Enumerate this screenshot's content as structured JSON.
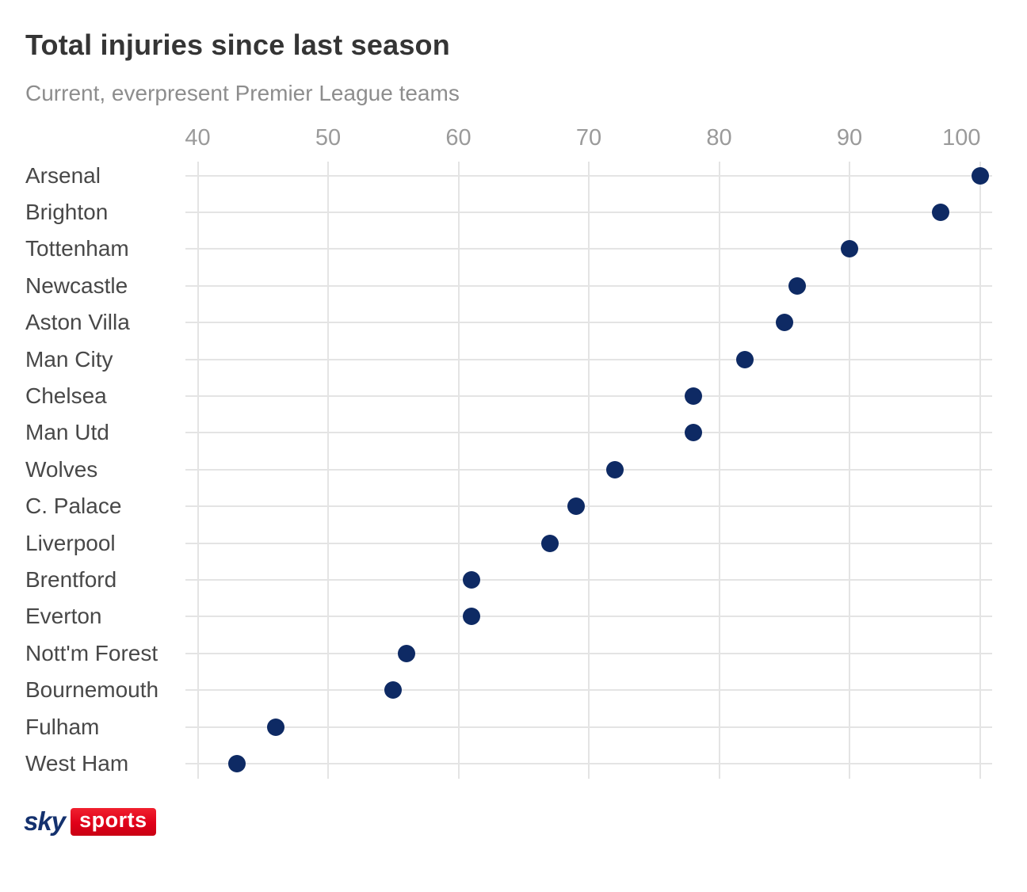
{
  "header": {
    "title": "Total injuries since last season",
    "subtitle": "Current, everpresent Premier League teams"
  },
  "logo": {
    "sky_text": "sky",
    "sports_text": "sports"
  },
  "colors": {
    "dot": "#0e2a64",
    "grid": "#e4e4e4",
    "title_text": "#353535",
    "subtitle_text": "#8d8d8d",
    "tick_text": "#9a9a9a",
    "team_text": "#484848",
    "logo_navy": "#14316e",
    "logo_red": "#e00019"
  },
  "chart_data": {
    "type": "scatter",
    "variant": "horizontal-dot-plot",
    "title": "Total injuries since last season",
    "subtitle": "Current, everpresent Premier League teams",
    "categories": [
      "Arsenal",
      "Brighton",
      "Tottenham",
      "Newcastle",
      "Aston Villa",
      "Man City",
      "Chelsea",
      "Man Utd",
      "Wolves",
      "C. Palace",
      "Liverpool",
      "Brentford",
      "Everton",
      "Nott'm Forest",
      "Bournemouth",
      "Fulham",
      "West Ham"
    ],
    "values": [
      100,
      97,
      90,
      86,
      85,
      82,
      78,
      78,
      72,
      69,
      67,
      61,
      61,
      56,
      55,
      46,
      43
    ],
    "x_ticks": [
      40,
      50,
      60,
      70,
      80,
      90,
      100
    ],
    "xlim": [
      39,
      101
    ],
    "xlabel": "",
    "ylabel": "",
    "axis_position": "top",
    "grid": true,
    "legend": "none",
    "dot_color": "#0e2a64"
  }
}
